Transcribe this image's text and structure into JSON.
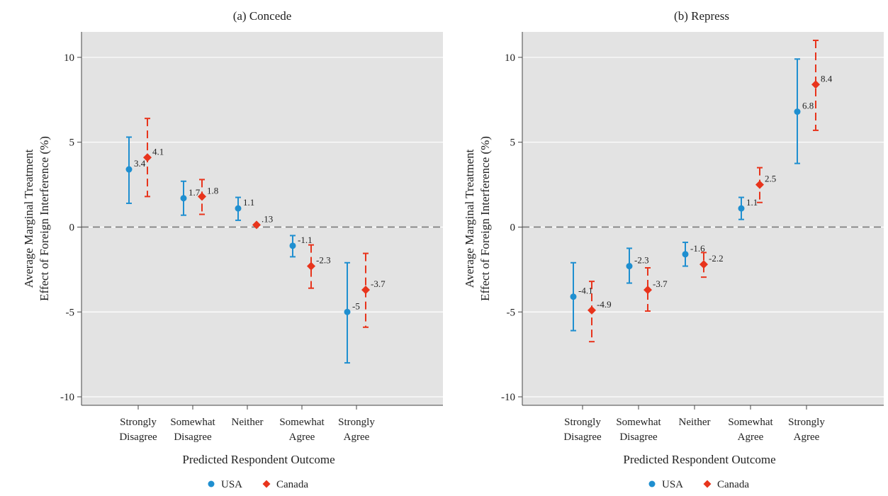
{
  "chart_data": [
    {
      "type": "scatter",
      "title": "(a) Concede",
      "xlabel": "Predicted Respondent Outcome",
      "ylabel": [
        "Average Marginal Treatment",
        "Effect of Foreign Interference (%)"
      ],
      "categories": [
        [
          "Strongly",
          "Disagree"
        ],
        [
          "Somewhat",
          "Disagree"
        ],
        [
          "Neither"
        ],
        [
          "Somewhat",
          "Agree"
        ],
        [
          "Strongly",
          "Agree"
        ]
      ],
      "ylim": [
        -10.5,
        11.5
      ],
      "yticks": [
        10,
        5,
        0,
        -5,
        -10
      ],
      "grid": true,
      "reference_line": 0,
      "legend_position": "bottom-center",
      "series": [
        {
          "name": "USA",
          "color": "#1f8fd0",
          "marker": "circle",
          "errorbar_style": "solid",
          "values": [
            3.4,
            1.7,
            1.1,
            -1.1,
            -5
          ],
          "labels": [
            "3.4",
            "1.7",
            "1.1",
            "-1.1",
            "-5"
          ],
          "ci_low": [
            1.4,
            0.7,
            0.4,
            -1.75,
            -8.0
          ],
          "ci_high": [
            5.3,
            2.7,
            1.75,
            -0.5,
            -2.1
          ]
        },
        {
          "name": "Canada",
          "color": "#e8341c",
          "marker": "diamond",
          "errorbar_style": "dashed",
          "values": [
            4.1,
            1.8,
            0.13,
            -2.3,
            -3.7
          ],
          "labels": [
            "4.1",
            "1.8",
            ".13",
            "-2.3",
            "-3.7"
          ],
          "ci_low": [
            1.8,
            0.75,
            0.13,
            -3.6,
            -5.9
          ],
          "ci_high": [
            6.4,
            2.8,
            0.13,
            -1.05,
            -1.55
          ]
        }
      ]
    },
    {
      "type": "scatter",
      "title": "(b) Repress",
      "xlabel": "Predicted Respondent Outcome",
      "ylabel": [
        "Average Marginal Treatment",
        "Effect of Foreign Interference (%)"
      ],
      "categories": [
        [
          "Strongly",
          "Disagree"
        ],
        [
          "Somewhat",
          "Disagree"
        ],
        [
          "Neither"
        ],
        [
          "Somewhat",
          "Agree"
        ],
        [
          "Strongly",
          "Agree"
        ]
      ],
      "ylim": [
        -10.5,
        11.5
      ],
      "yticks": [
        10,
        5,
        0,
        -5,
        -10
      ],
      "grid": true,
      "reference_line": 0,
      "legend_position": "bottom-center",
      "series": [
        {
          "name": "USA",
          "color": "#1f8fd0",
          "marker": "circle",
          "errorbar_style": "solid",
          "values": [
            -4.1,
            -2.3,
            -1.6,
            1.1,
            6.8
          ],
          "labels": [
            "-4.1",
            "-2.3",
            "-1.6",
            "1.1",
            "6.8"
          ],
          "ci_low": [
            -6.1,
            -3.3,
            -2.3,
            0.45,
            3.75
          ],
          "ci_high": [
            -2.1,
            -1.25,
            -0.9,
            1.75,
            9.9
          ]
        },
        {
          "name": "Canada",
          "color": "#e8341c",
          "marker": "diamond",
          "errorbar_style": "dashed",
          "values": [
            -4.9,
            -3.7,
            -2.2,
            2.5,
            8.4
          ],
          "labels": [
            "-4.9",
            "-3.7",
            "-2.2",
            "2.5",
            "8.4"
          ],
          "ci_low": [
            -6.75,
            -4.95,
            -2.95,
            1.45,
            5.7
          ],
          "ci_high": [
            -3.2,
            -2.4,
            -1.5,
            3.5,
            11.0
          ]
        }
      ]
    }
  ]
}
